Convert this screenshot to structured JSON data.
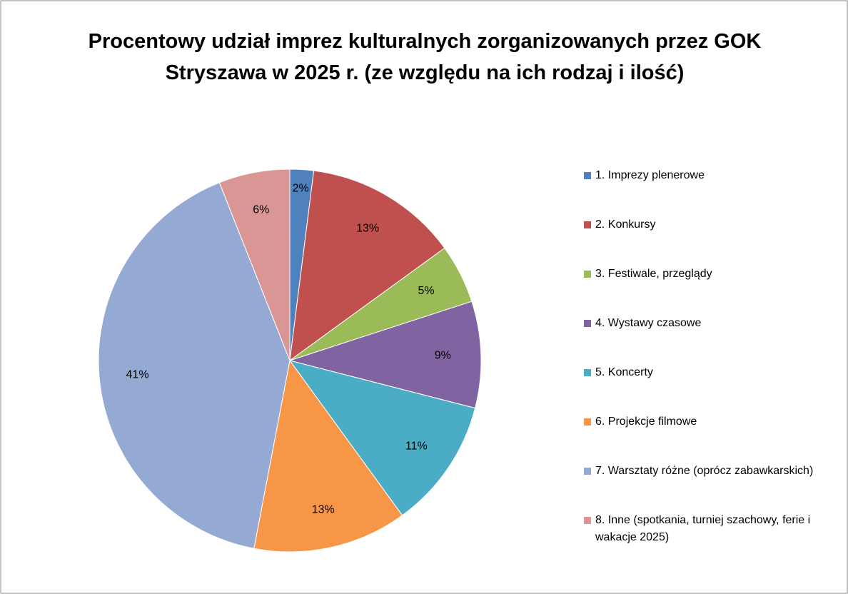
{
  "chart_data": {
    "type": "pie",
    "title": "Procentowy udział imprez kulturalnych zorganizowanych przez GOK Stryszawa w 2025 r. (ze względu na ich rodzaj i ilość)",
    "categories": [
      "1. Imprezy plenerowe",
      "2.  Konkursy",
      "3.  Festiwale, przeglądy",
      "4.  Wystawy czasowe",
      "5. Koncerty",
      "6. Projekcje filmowe",
      "7. Warsztaty różne (oprócz zabawkarskich)",
      "8. Inne (spotkania, turniej szachowy, ferie i wakacje 2025)"
    ],
    "values": [
      2,
      13,
      5,
      9,
      11,
      13,
      41,
      6
    ],
    "value_labels": [
      "2%",
      "13%",
      "5%",
      "9%",
      "11%",
      "13%",
      "41%",
      "6%"
    ],
    "colors": [
      "#4F81BD",
      "#C0504D",
      "#9BBB59",
      "#8064A2",
      "#4BACC6",
      "#F79646",
      "#95AAD3",
      "#D99694"
    ],
    "legend": "right"
  }
}
